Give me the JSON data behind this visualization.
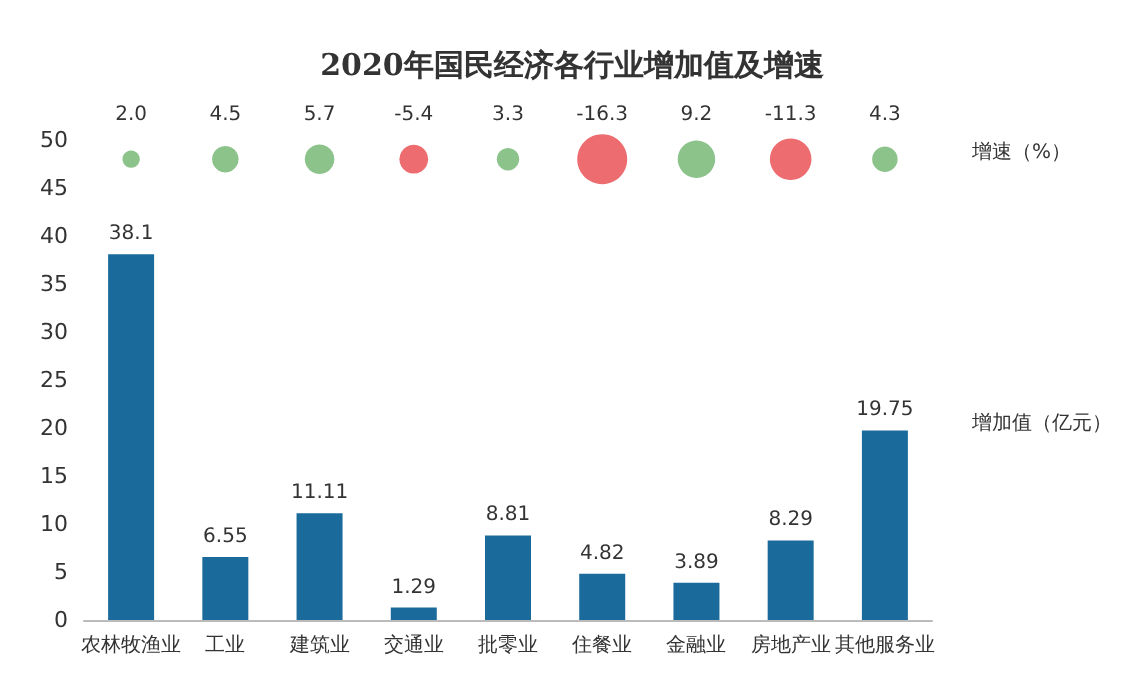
{
  "chart_data": {
    "type": "bar",
    "title": "2020年国民经济各行业增加值及增速",
    "categories": [
      "农林牧渔业",
      "工业",
      "建筑业",
      "交通业",
      "批零业",
      "住餐业",
      "金融业",
      "房地产业",
      "其他服务业"
    ],
    "series": [
      {
        "name": "增加值（亿元）",
        "color": "#1a6b9c",
        "values": [
          38.1,
          6.55,
          11.11,
          1.29,
          8.81,
          4.82,
          3.89,
          8.29,
          19.75
        ],
        "data_labels": true
      },
      {
        "name": "增速（%）",
        "type": "bubble",
        "values": [
          48,
          48,
          48,
          48,
          48,
          48,
          48,
          48,
          48
        ],
        "sizes": [
          0.12,
          0.28,
          0.35,
          0.33,
          0.2,
          1,
          0.56,
          0.69,
          0.26
        ],
        "colors": [
          "#6fb46e",
          "#6fb46e",
          "#6fb46e",
          "#e8474c",
          "#6fb46e",
          "#e8474c",
          "#6fb46e",
          "#e8474c",
          "#6fb46e"
        ]
      }
    ],
    "annotations": [
      {
        "text": "2.0",
        "x": "农林牧渔业",
        "y": 48
      },
      {
        "text": "4.5",
        "x": "工业",
        "y": 48
      },
      {
        "text": "5.7",
        "x": "建筑业",
        "y": 48
      },
      {
        "text": "-5.4",
        "x": "交通业",
        "y": 48
      },
      {
        "text": "3.3",
        "x": "批零业",
        "y": 48
      },
      {
        "text": "-16.3",
        "x": "住餐业",
        "y": 48
      },
      {
        "text": "9.2",
        "x": "金融业",
        "y": 48
      },
      {
        "text": "-11.3",
        "x": "房地产业",
        "y": 48
      },
      {
        "text": "4.3",
        "x": "其他服务业",
        "y": 48
      }
    ],
    "ylim": [
      0,
      50
    ],
    "yticks": [
      0,
      5,
      10,
      15,
      20,
      25,
      30,
      35,
      40,
      45,
      50
    ],
    "grid": false,
    "legend": false
  }
}
